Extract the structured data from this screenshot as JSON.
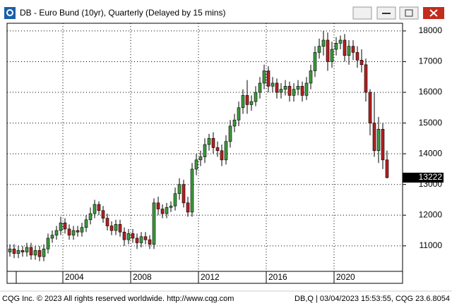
{
  "chart_data": {
    "type": "candlestick",
    "title": "DB - Euro Bund (10yr), Quarterly (Delayed by 15 mins)",
    "categories": [
      null,
      null,
      null,
      null,
      null,
      null,
      null,
      null,
      null,
      null,
      null,
      null,
      null,
      "2004",
      null,
      null,
      null,
      null,
      null,
      null,
      null,
      null,
      null,
      null,
      null,
      null,
      null,
      null,
      null,
      "2008",
      null,
      null,
      null,
      null,
      null,
      null,
      null,
      null,
      null,
      null,
      null,
      null,
      null,
      null,
      null,
      "2012",
      null,
      null,
      null,
      null,
      null,
      null,
      null,
      null,
      null,
      null,
      null,
      null,
      null,
      null,
      null,
      "2016",
      null,
      null,
      null,
      null,
      null,
      null,
      null,
      null,
      null,
      null,
      null,
      null,
      null,
      null,
      null,
      "2020",
      null,
      null,
      null,
      null,
      null,
      null,
      null,
      null,
      null,
      null,
      null,
      null
    ],
    "open": [
      10800,
      10900,
      10750,
      10850,
      10800,
      10950,
      10700,
      10850,
      10650,
      10900,
      11250,
      11350,
      11500,
      11750,
      11550,
      11350,
      11500,
      11450,
      11600,
      11850,
      12050,
      12350,
      12150,
      11900,
      11650,
      11500,
      11700,
      11450,
      11200,
      11400,
      11250,
      11100,
      11300,
      11200,
      11050,
      12400,
      12200,
      12050,
      12250,
      12300,
      12700,
      13000,
      12400,
      12100,
      13500,
      13800,
      13900,
      14300,
      14500,
      14200,
      14100,
      13800,
      14400,
      14900,
      15100,
      15500,
      15900,
      15600,
      15700,
      16000,
      16300,
      16700,
      16200,
      16300,
      16000,
      16100,
      16200,
      15900,
      16100,
      16200,
      15900,
      16300,
      16700,
      17300,
      17500,
      17700,
      17000,
      17400,
      17600,
      17700,
      17200,
      17500,
      17300,
      17050,
      16900,
      16000,
      15000,
      14100,
      14800,
      13800
    ],
    "high": [
      11050,
      11050,
      11000,
      11000,
      11100,
      11100,
      11000,
      11000,
      11050,
      11400,
      11500,
      11650,
      11950,
      11900,
      11700,
      11650,
      11650,
      11750,
      12000,
      12250,
      12500,
      12450,
      12300,
      12050,
      11800,
      11850,
      11850,
      11600,
      11550,
      11550,
      11400,
      11450,
      11450,
      11350,
      12550,
      12600,
      12350,
      12400,
      12450,
      12900,
      13200,
      13150,
      12600,
      13700,
      14000,
      14100,
      14500,
      14650,
      14700,
      14400,
      14300,
      14600,
      15100,
      15300,
      15700,
      16100,
      16400,
      15900,
      16200,
      16500,
      16900,
      16850,
      16500,
      16450,
      16300,
      16400,
      16350,
      16300,
      16400,
      16350,
      16500,
      16900,
      17500,
      17750,
      18000,
      17950,
      17650,
      17800,
      17850,
      17900,
      17700,
      17700,
      17500,
      17400,
      17100,
      16100,
      16000,
      15200,
      15000,
      14100
    ],
    "low": [
      10650,
      10600,
      10600,
      10650,
      10650,
      10550,
      10550,
      10500,
      10500,
      10750,
      11100,
      11200,
      11350,
      11400,
      11200,
      11200,
      11300,
      11300,
      11450,
      11700,
      11900,
      12000,
      11750,
      11500,
      11350,
      11350,
      11300,
      11000,
      11050,
      11100,
      10900,
      10950,
      11050,
      10900,
      10900,
      12000,
      11900,
      11900,
      12100,
      12150,
      12500,
      12250,
      11950,
      11950,
      13300,
      13600,
      13700,
      14100,
      14000,
      13900,
      13600,
      13650,
      14200,
      14700,
      14900,
      15300,
      15300,
      15400,
      15550,
      15800,
      16100,
      16000,
      16000,
      15800,
      15800,
      15900,
      15700,
      15700,
      15900,
      15700,
      15750,
      16100,
      16500,
      17100,
      17200,
      16700,
      16800,
      17200,
      17400,
      17000,
      16900,
      17050,
      16800,
      16650,
      15700,
      14600,
      13900,
      13700,
      13500,
      13200
    ],
    "close": [
      10900,
      10750,
      10850,
      10800,
      10950,
      10700,
      10850,
      10650,
      10900,
      11250,
      11350,
      11500,
      11750,
      11550,
      11350,
      11500,
      11450,
      11600,
      11850,
      12050,
      12350,
      12150,
      11900,
      11650,
      11500,
      11700,
      11450,
      11200,
      11400,
      11250,
      11100,
      11300,
      11200,
      11050,
      12400,
      12200,
      12050,
      12250,
      12300,
      12700,
      13000,
      12400,
      12100,
      13500,
      13800,
      13900,
      14300,
      14500,
      14200,
      14100,
      13800,
      14400,
      14900,
      15100,
      15500,
      15900,
      15600,
      15700,
      16000,
      16300,
      16700,
      16200,
      16300,
      16000,
      16100,
      16200,
      15900,
      16100,
      16200,
      15900,
      16300,
      16700,
      17300,
      17500,
      17700,
      17000,
      17400,
      17600,
      17700,
      17200,
      17500,
      17300,
      17050,
      16900,
      16000,
      15000,
      14100,
      14800,
      13800,
      13222
    ],
    "up_color": "#3c9a3c",
    "down_color": "#b42020",
    "ylim": [
      10170,
      18250
    ],
    "yticks": [
      11000,
      12000,
      13000,
      14000,
      15000,
      16000,
      17000,
      18000
    ],
    "grid": true,
    "last_price": 13222
  },
  "footer": {
    "left": "CQG Inc. © 2023 All rights reserved worldwide. http://www.cqg.com",
    "right": "DB,Q | 03/04/2023 15:53:55, CQG 23.6.8054"
  }
}
